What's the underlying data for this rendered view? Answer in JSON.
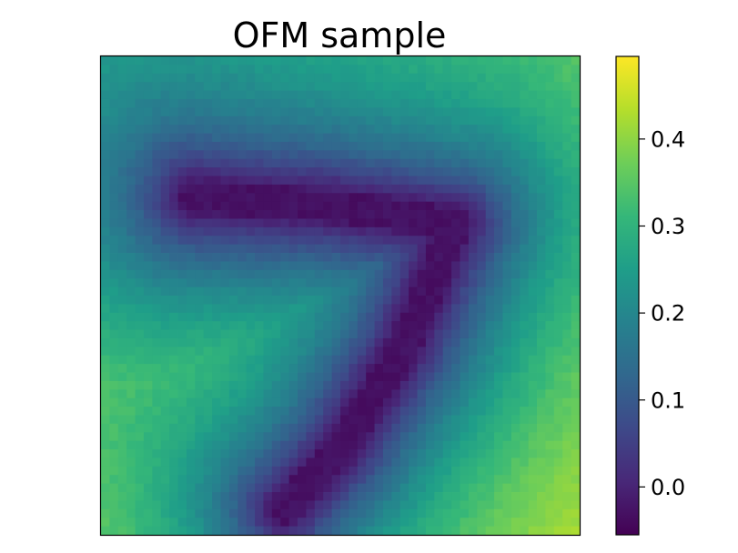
{
  "chart_data": {
    "type": "heatmap",
    "title": "OFM sample",
    "xlabel": "",
    "ylabel": "",
    "grid": false,
    "grid_size": [
      56,
      56
    ],
    "colormap": "viridis",
    "x_ticks": [],
    "y_ticks": [],
    "colorbar": {
      "min": -0.055,
      "max": 0.495,
      "ticks": [
        0.0,
        0.1,
        0.2,
        0.3,
        0.4
      ],
      "tick_labels": [
        "0.0",
        "0.1",
        "0.2",
        "0.3",
        "0.4"
      ]
    },
    "stroke_polyline": [
      [
        11,
        16.5
      ],
      [
        27,
        17.5
      ],
      [
        41.5,
        19.5
      ],
      [
        35.5,
        34
      ],
      [
        28,
        46
      ],
      [
        21.5,
        53
      ]
    ],
    "corner_levels": {
      "top_left": 0.3,
      "top_right": 0.4,
      "bottom_left": 0.42,
      "bottom_right": 0.46,
      "ink": -0.04
    }
  }
}
